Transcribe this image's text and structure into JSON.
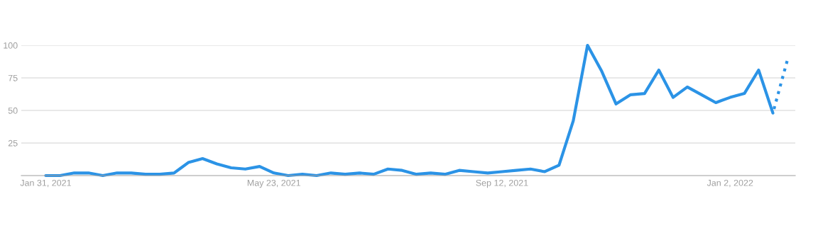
{
  "chart_data": {
    "type": "line",
    "series": [
      {
        "color": "#2b93e6",
        "line_style": "solid",
        "x": [
          "2021-01-31",
          "2021-02-07",
          "2021-02-14",
          "2021-02-21",
          "2021-02-28",
          "2021-03-07",
          "2021-03-14",
          "2021-03-21",
          "2021-03-28",
          "2021-04-04",
          "2021-04-11",
          "2021-04-18",
          "2021-04-25",
          "2021-05-02",
          "2021-05-09",
          "2021-05-16",
          "2021-05-23",
          "2021-05-30",
          "2021-06-06",
          "2021-06-13",
          "2021-06-20",
          "2021-06-27",
          "2021-07-04",
          "2021-07-11",
          "2021-07-18",
          "2021-07-25",
          "2021-08-01",
          "2021-08-08",
          "2021-08-15",
          "2021-08-22",
          "2021-08-29",
          "2021-09-05",
          "2021-09-12",
          "2021-09-19",
          "2021-09-26",
          "2021-10-03",
          "2021-10-10",
          "2021-10-17",
          "2021-10-24",
          "2021-10-31",
          "2021-11-07",
          "2021-11-14",
          "2021-11-21",
          "2021-11-28",
          "2021-12-05",
          "2021-12-12",
          "2021-12-19",
          "2021-12-26",
          "2022-01-02",
          "2022-01-09",
          "2022-01-16",
          "2022-01-23"
        ],
        "values": [
          0,
          0,
          2,
          2,
          0,
          2,
          2,
          1,
          1,
          2,
          10,
          13,
          9,
          6,
          5,
          7,
          2,
          0,
          1,
          0,
          2,
          1,
          2,
          1,
          5,
          4,
          1,
          2,
          1,
          4,
          3,
          2,
          3,
          4,
          5,
          3,
          8,
          42,
          100,
          80,
          55,
          62,
          63,
          81,
          60,
          68,
          62,
          56,
          60,
          63,
          81,
          48
        ]
      },
      {
        "color": "#2b93e6",
        "line_style": "dotted",
        "x": [
          "2022-01-23",
          "2022-01-30"
        ],
        "values": [
          48,
          88
        ]
      }
    ],
    "xlim": [
      "2021-01-19",
      "2022-02-03"
    ],
    "xticks": [
      {
        "value": "2021-01-31",
        "label": "Jan 31, 2021"
      },
      {
        "value": "2021-05-23",
        "label": "May 23, 2021"
      },
      {
        "value": "2021-09-12",
        "label": "Sep 12, 2021"
      },
      {
        "value": "2022-01-02",
        "label": "Jan 2, 2022"
      }
    ],
    "ylim": [
      0,
      100
    ],
    "yticks": [
      25,
      50,
      75,
      100
    ],
    "grid": "y",
    "legend": false
  }
}
